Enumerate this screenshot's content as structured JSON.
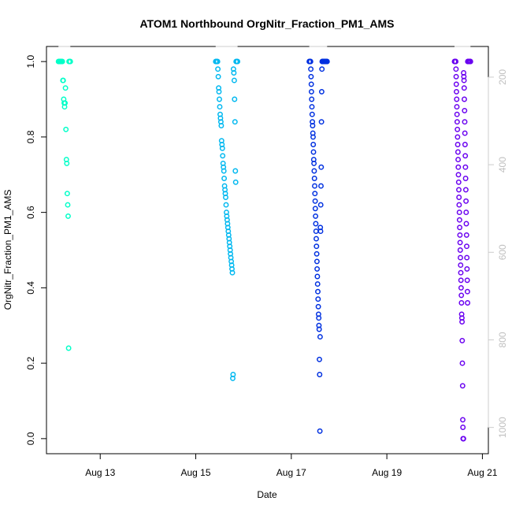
{
  "chart_data": {
    "type": "scatter",
    "title": "ATOM1 Northbound OrgNitr_Fraction_PM1_AMS",
    "xlabel": "Date",
    "ylabel": "OrgNitr_Fraction_PM1_AMS",
    "xlim": [
      "2016-08-11T21:00",
      "2016-08-21T03:00"
    ],
    "ylim": [
      -0.04,
      1.04
    ],
    "y2lim": [
      1060,
      130
    ],
    "x_ticks": [
      {
        "label": "Aug 13",
        "date": "2016-08-13"
      },
      {
        "label": "Aug 15",
        "date": "2016-08-15"
      },
      {
        "label": "Aug 17",
        "date": "2016-08-17"
      },
      {
        "label": "Aug 19",
        "date": "2016-08-19"
      },
      {
        "label": "Aug 21",
        "date": "2016-08-21"
      }
    ],
    "y_ticks": [
      0.0,
      0.2,
      0.4,
      0.6,
      0.8,
      1.0
    ],
    "y_tick_labels": [
      "0.0",
      "0.2",
      "0.4",
      "0.6",
      "0.8",
      "1.0"
    ],
    "y2_ticks": [
      200,
      400,
      600,
      800,
      1000
    ],
    "y2_tick_labels": [
      "200",
      "400",
      "600",
      "800",
      "1000"
    ],
    "grid": false,
    "legend": "none",
    "altitude_color": "#cccccc",
    "series": [
      {
        "color": "#00ffc8",
        "start": "2016-08-12T03:00",
        "end": "2016-08-12T09:00",
        "values": [
          1,
          1,
          1,
          1,
          1,
          1,
          1,
          1,
          1,
          1,
          0.95,
          0.95,
          0.9,
          0.89,
          0.88,
          0.89,
          0.93,
          0.82,
          0.74,
          0.73,
          0.65,
          0.62,
          0.59,
          0.24,
          1,
          1,
          1,
          1
        ]
      },
      {
        "color": "#00b8f0",
        "start": "2016-08-15T10:00",
        "end": "2016-08-15T21:00",
        "values": [
          1,
          1,
          1,
          1,
          1,
          1,
          0.98,
          0.96,
          0.93,
          0.92,
          0.9,
          0.88,
          0.86,
          0.85,
          0.84,
          0.83,
          0.79,
          0.78,
          0.77,
          0.75,
          0.73,
          0.72,
          0.71,
          0.69,
          0.67,
          0.66,
          0.65,
          0.64,
          0.62,
          0.6,
          0.59,
          0.58,
          0.57,
          0.56,
          0.55,
          0.54,
          0.53,
          0.52,
          0.51,
          0.5,
          0.49,
          0.48,
          0.47,
          0.46,
          0.45,
          0.44,
          0.16,
          0.17,
          0.98,
          0.97,
          0.95,
          0.9,
          0.84,
          0.71,
          0.68,
          1,
          1,
          1,
          1,
          1
        ]
      },
      {
        "color": "#0030e0",
        "start": "2016-08-17T09:00",
        "end": "2016-08-17T18:00",
        "values": [
          1,
          1,
          1,
          1,
          1,
          1,
          1,
          0.98,
          0.96,
          0.94,
          0.92,
          0.9,
          0.88,
          0.86,
          0.84,
          0.83,
          0.81,
          0.8,
          0.78,
          0.76,
          0.74,
          0.73,
          0.71,
          0.69,
          0.67,
          0.65,
          0.63,
          0.61,
          0.59,
          0.57,
          0.55,
          0.53,
          0.51,
          0.49,
          0.47,
          0.45,
          0.43,
          0.41,
          0.39,
          0.37,
          0.35,
          0.33,
          0.32,
          0.3,
          0.29,
          0.21,
          0.17,
          0.02,
          0.27,
          0.56,
          0.55,
          0.62,
          0.67,
          0.72,
          0.84,
          0.92,
          0.98,
          1,
          1,
          1,
          1,
          1,
          1,
          1,
          1,
          1,
          1,
          1,
          1,
          1,
          1,
          1,
          1,
          1,
          1,
          1,
          1,
          1,
          1,
          1
        ]
      },
      {
        "color": "#6a00f0",
        "start": "2016-08-20T10:00",
        "end": "2016-08-20T18:00",
        "values": [
          1,
          1,
          1,
          1,
          1,
          1,
          1,
          1,
          0.98,
          0.96,
          0.94,
          0.92,
          0.9,
          0.88,
          0.86,
          0.84,
          0.82,
          0.8,
          0.78,
          0.76,
          0.74,
          0.72,
          0.7,
          0.68,
          0.66,
          0.64,
          0.62,
          0.6,
          0.58,
          0.56,
          0.54,
          0.52,
          0.5,
          0.48,
          0.46,
          0.44,
          0.42,
          0.4,
          0.38,
          0.36,
          0.33,
          0.32,
          0.31,
          0.26,
          0.2,
          0.14,
          0.05,
          0.03,
          0,
          0,
          0,
          0.97,
          0.96,
          0.95,
          0.93,
          0.9,
          0.87,
          0.84,
          0.81,
          0.78,
          0.75,
          0.72,
          0.69,
          0.66,
          0.63,
          0.6,
          0.57,
          0.54,
          0.51,
          0.48,
          0.45,
          0.42,
          0.39,
          0.36,
          1,
          1,
          1,
          1,
          1,
          1,
          1,
          1,
          1,
          1,
          1,
          1,
          1,
          1,
          1,
          1
        ]
      }
    ],
    "altitude": [
      {
        "start": "2016-08-12T03:00",
        "end": "2016-08-12T09:00",
        "values": [
          130,
          130,
          130,
          130,
          130,
          130,
          130,
          130,
          130,
          130,
          130,
          130,
          130,
          130,
          130,
          130,
          130,
          130,
          130,
          130,
          130,
          130,
          130,
          130
        ]
      },
      {
        "start": "2016-08-15T10:00",
        "end": "2016-08-15T21:00",
        "values": [
          130,
          130,
          130,
          130,
          130,
          130,
          130,
          130,
          130,
          130,
          130,
          130,
          130,
          130,
          130,
          130,
          130,
          130,
          130,
          130,
          130,
          130,
          130,
          130,
          130,
          130,
          130,
          130,
          130,
          130
        ]
      },
      {
        "start": "2016-08-17T09:00",
        "end": "2016-08-17T18:00",
        "values": [
          130,
          130,
          130,
          130,
          130,
          130,
          130,
          130,
          130,
          130,
          130,
          130,
          130,
          130,
          130,
          130,
          130,
          130,
          130,
          130,
          130,
          130,
          130,
          130,
          130,
          130,
          130,
          130,
          130,
          130
        ]
      },
      {
        "start": "2016-08-20T10:00",
        "end": "2016-08-20T18:00",
        "values": [
          130,
          130,
          130,
          130,
          130,
          130,
          130,
          130,
          130,
          130,
          130,
          130,
          130,
          130,
          130,
          130,
          130,
          130,
          130,
          130,
          130,
          130,
          130,
          130,
          130,
          130,
          130,
          130,
          130,
          130
        ]
      }
    ]
  }
}
